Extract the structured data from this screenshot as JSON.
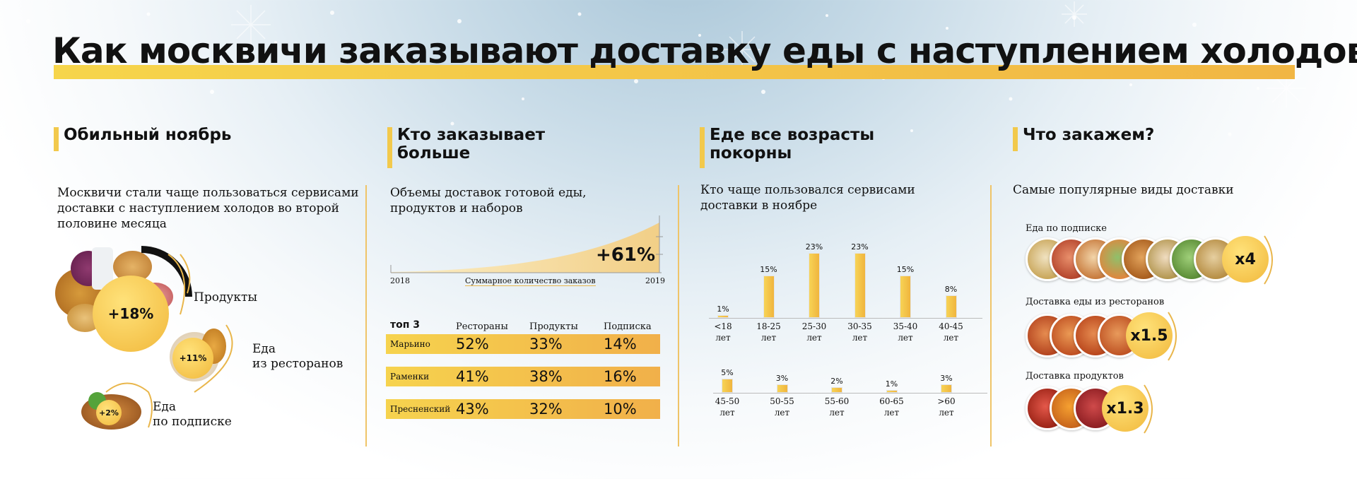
{
  "title": "Как москвичи заказывают доставку еды с наступлением холодов",
  "col1": {
    "heading": "Обильный ноябрь",
    "text_lines": [
      "Москвичи стали чаще пользоваться сервисами",
      "доставки с наступлением холодов во второй",
      "половине месяца"
    ],
    "items": [
      {
        "pct": "+18%",
        "label_lines": [
          "Продукты"
        ]
      },
      {
        "pct": "+11%",
        "label_lines": [
          "Еда",
          "из ресторанов"
        ]
      },
      {
        "pct": "+2%",
        "label_lines": [
          "Еда",
          "по подписке"
        ]
      }
    ]
  },
  "col2": {
    "heading_lines": [
      "Кто заказывает",
      "больше"
    ],
    "text_lines": [
      "Объемы доставок готовой еды,",
      "продуктов и наборов"
    ],
    "growth": "+61%",
    "year_start": "2018",
    "year_end": "2019",
    "axis_caption": "Суммарное количество заказов",
    "table_title": "топ 3",
    "columns": [
      "Рестораны",
      "Продукты",
      "Подписка"
    ],
    "rows": [
      {
        "city": "Марьино",
        "values": [
          "52%",
          "33%",
          "14%"
        ]
      },
      {
        "city": "Раменки",
        "values": [
          "41%",
          "38%",
          "16%"
        ]
      },
      {
        "city": "Пресненский",
        "values": [
          "43%",
          "32%",
          "10%"
        ]
      }
    ]
  },
  "col3": {
    "heading_lines": [
      "Еде все возрасты",
      "покорны"
    ],
    "text_lines": [
      "Кто чаще пользовался сервисами",
      "доставки в ноябре"
    ],
    "row1": [
      {
        "pct": "1%",
        "value": 1,
        "age": [
          "<18",
          "лет"
        ]
      },
      {
        "pct": "15%",
        "value": 15,
        "age": [
          "18-25",
          "лет"
        ]
      },
      {
        "pct": "23%",
        "value": 23,
        "age": [
          "25-30",
          "лет"
        ]
      },
      {
        "pct": "23%",
        "value": 23,
        "age": [
          "30-35",
          "лет"
        ]
      },
      {
        "pct": "15%",
        "value": 15,
        "age": [
          "35-40",
          "лет"
        ]
      },
      {
        "pct": "8%",
        "value": 8,
        "age": [
          "40-45",
          "лет"
        ]
      }
    ],
    "row2": [
      {
        "pct": "5%",
        "value": 5,
        "age": [
          "45-50",
          "лет"
        ]
      },
      {
        "pct": "3%",
        "value": 3,
        "age": [
          "50-55",
          "лет"
        ]
      },
      {
        "pct": "2%",
        "value": 2,
        "age": [
          "55-60",
          "лет"
        ]
      },
      {
        "pct": "1%",
        "value": 1,
        "age": [
          "60-65",
          "лет"
        ]
      },
      {
        "pct": "3%",
        "value": 3,
        "age": [
          ">60",
          "лет"
        ]
      }
    ]
  },
  "col4": {
    "heading": "Что закажем?",
    "text": "Самые популярные виды доставки",
    "items": [
      {
        "label": "Еда по подписке",
        "mult": "x4",
        "plates": 8
      },
      {
        "label": "Доставка еды из ресторанов",
        "mult": "x1.5",
        "plates": 4
      },
      {
        "label": "Доставка продуктов",
        "mult": "x1.3",
        "plates": 3
      }
    ]
  },
  "colors": {
    "accent": "#f2c94c",
    "accent_dark": "#f0b040",
    "text": "#111111"
  }
}
